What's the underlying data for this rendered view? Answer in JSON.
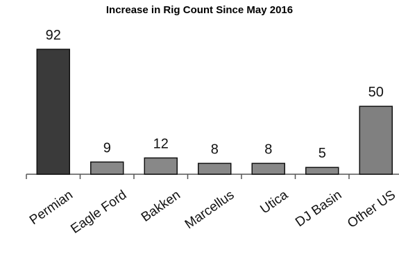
{
  "chart_data": {
    "type": "bar",
    "title": "Increase in Rig Count Since May 2016",
    "xlabel": "",
    "ylabel": "",
    "categories": [
      "Permian",
      "Eagle Ford",
      "Bakken",
      "Marcellus",
      "Utica",
      "DJ Basin",
      "Other US"
    ],
    "values": [
      92,
      9,
      12,
      8,
      8,
      5,
      50
    ],
    "ylim": [
      0,
      92
    ],
    "grid": false,
    "legend": "none",
    "colors": {
      "highlight": "#3a3a3a",
      "bar": "#888888",
      "last_bar": "#808080",
      "axis": "#555555"
    }
  }
}
